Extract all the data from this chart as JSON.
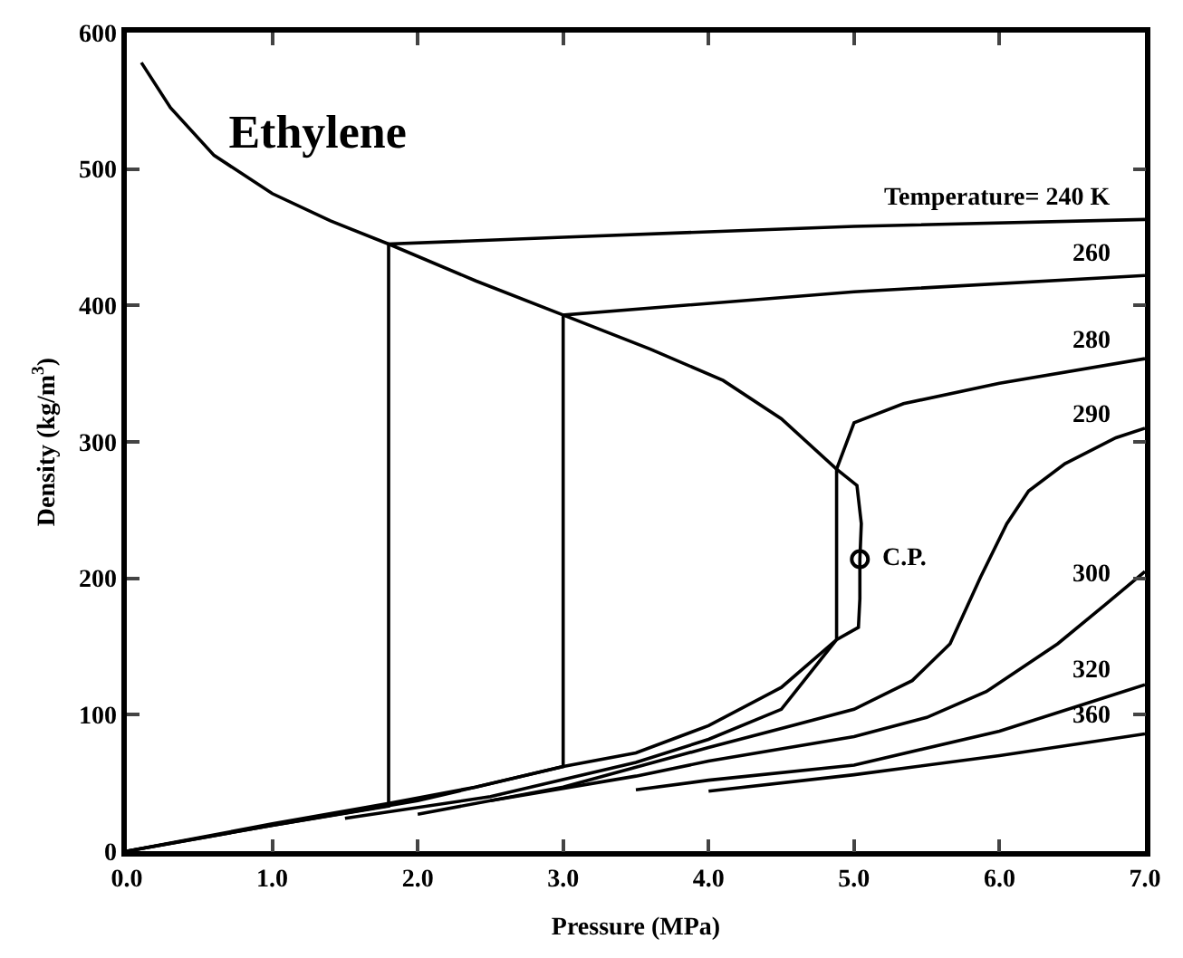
{
  "chart_data": {
    "type": "line",
    "title": "Ethylene",
    "xlabel": "Pressure (MPa)",
    "ylabel": "Density (kg/m$^{3}$)",
    "xlim": [
      0,
      7
    ],
    "ylim": [
      0,
      600
    ],
    "xticks": [
      {
        "value": 0,
        "label": "0.0"
      },
      {
        "value": 1,
        "label": "1.0"
      },
      {
        "value": 2,
        "label": "2.0"
      },
      {
        "value": 3,
        "label": "3.0"
      },
      {
        "value": 4,
        "label": "4.0"
      },
      {
        "value": 5,
        "label": "5.0"
      },
      {
        "value": 6,
        "label": "6.0"
      },
      {
        "value": 7,
        "label": "7.0"
      }
    ],
    "yticks": [
      0,
      100,
      200,
      300,
      400,
      500,
      600
    ],
    "grid": false,
    "legend": false,
    "marker": "none",
    "line_style": "solid",
    "series": [
      {
        "color": "#000000",
        "x": [
          0.1,
          0.3,
          0.6,
          1.0,
          1.4,
          1.8,
          2.4,
          3.0,
          3.6,
          4.1,
          4.5,
          4.88,
          5.02,
          5.05,
          5.04,
          5.04,
          5.03,
          4.88,
          4.5,
          4.0,
          3.5,
          3.0,
          2.4,
          1.8,
          1.0,
          0.5,
          0
        ],
        "values": [
          578,
          545,
          510,
          482,
          462,
          445,
          418,
          393,
          368,
          345,
          317,
          280,
          268,
          240,
          214,
          185,
          164,
          155,
          120,
          92,
          72,
          62,
          47,
          35,
          20,
          10,
          0
        ]
      },
      {
        "name": "Temperature= 240 K",
        "color": "#000000",
        "x": [
          0,
          1.0,
          1.8,
          1.8,
          3.0,
          5.0,
          7.0
        ],
        "values": [
          0,
          19,
          33,
          445,
          450,
          458,
          463
        ]
      },
      {
        "name": "260",
        "color": "#000000",
        "x": [
          0,
          1.0,
          2.0,
          3.0,
          3.0,
          5.0,
          7.0
        ],
        "values": [
          0,
          19,
          37,
          62,
          393,
          410,
          422
        ]
      },
      {
        "name": "280",
        "color": "#000000",
        "x": [
          1.5,
          2.5,
          3.5,
          4.0,
          4.5,
          4.88,
          4.88,
          5.0,
          5.34,
          6.0,
          7.0
        ],
        "values": [
          24,
          40,
          65,
          82,
          104,
          155,
          280,
          314,
          328,
          343,
          361
        ]
      },
      {
        "name": "290",
        "color": "#000000",
        "x": [
          2.0,
          3.0,
          4.0,
          4.5,
          5.0,
          5.4,
          5.66,
          5.87,
          6.05,
          6.2,
          6.45,
          6.8,
          7.0
        ],
        "values": [
          27,
          47,
          76,
          90,
          104,
          125,
          152,
          201,
          240,
          264,
          284,
          303,
          310
        ]
      },
      {
        "name": "300",
        "color": "#000000",
        "x": [
          2.5,
          3.5,
          4.0,
          5.0,
          5.5,
          5.91,
          6.4,
          6.73,
          7.0
        ],
        "values": [
          37,
          55,
          66,
          84,
          98,
          117,
          152,
          181,
          205
        ]
      },
      {
        "name": "320",
        "color": "#000000",
        "x": [
          3.5,
          4.0,
          5.0,
          6.0,
          7.0
        ],
        "values": [
          45,
          52,
          63,
          88,
          122
        ]
      },
      {
        "name": "360",
        "color": "#000000",
        "x": [
          4.0,
          5.0,
          6.0,
          7.0
        ],
        "values": [
          44,
          56,
          70,
          86
        ]
      },
      {
        "type": "scatter",
        "marker": "circle",
        "color": "#000000",
        "x": [
          5.04
        ],
        "values": [
          214
        ]
      }
    ],
    "annotations": [
      {
        "text": "C.P.",
        "x": 5.04,
        "y": 214
      }
    ]
  }
}
